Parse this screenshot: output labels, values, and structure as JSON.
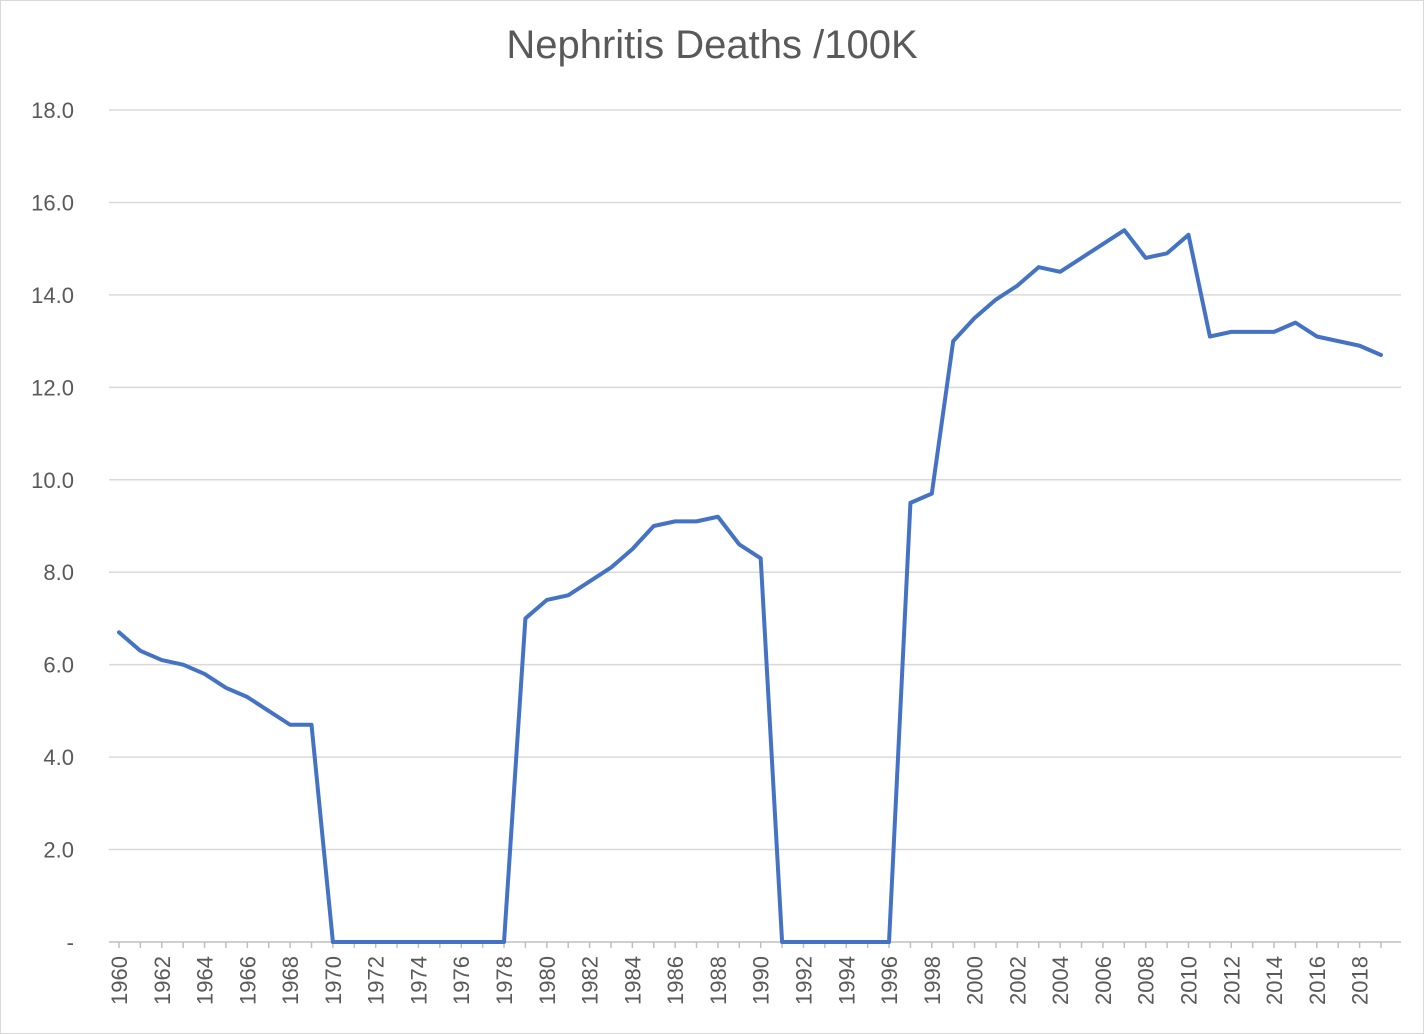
{
  "chart_data": {
    "type": "line",
    "title": "Nephritis Deaths /100K",
    "xlabel": "",
    "ylabel": "",
    "ylim": [
      0,
      18
    ],
    "yticks": [
      "-",
      "2.0",
      "4.0",
      "6.0",
      "8.0",
      "10.0",
      "12.0",
      "14.0",
      "16.0",
      "18.0"
    ],
    "xticks": [
      "1960",
      "1962",
      "1964",
      "1966",
      "1968",
      "1970",
      "1972",
      "1974",
      "1976",
      "1978",
      "1980",
      "1982",
      "1984",
      "1986",
      "1988",
      "1990",
      "1992",
      "1994",
      "1996",
      "1998",
      "2000",
      "2002",
      "2004",
      "2006",
      "2008",
      "2010",
      "2012",
      "2014",
      "2016",
      "2018"
    ],
    "grid": true,
    "legend": "none",
    "series_color": "#4472c4",
    "x": [
      1960,
      1961,
      1962,
      1963,
      1964,
      1965,
      1966,
      1967,
      1968,
      1969,
      1970,
      1971,
      1972,
      1973,
      1974,
      1975,
      1976,
      1977,
      1978,
      1979,
      1980,
      1981,
      1982,
      1983,
      1984,
      1985,
      1986,
      1987,
      1988,
      1989,
      1990,
      1991,
      1992,
      1993,
      1994,
      1995,
      1996,
      1997,
      1998,
      1999,
      2000,
      2001,
      2002,
      2003,
      2004,
      2005,
      2006,
      2007,
      2008,
      2009,
      2010,
      2011,
      2012,
      2013,
      2014,
      2015,
      2016,
      2017,
      2018,
      2019
    ],
    "series": [
      {
        "values": [
          6.7,
          6.3,
          6.1,
          6.0,
          5.8,
          5.5,
          5.3,
          5.0,
          4.7,
          4.7,
          0,
          0,
          0,
          0,
          0,
          0,
          0,
          0,
          0,
          7.0,
          7.4,
          7.5,
          7.8,
          8.1,
          8.5,
          9.0,
          9.1,
          9.1,
          9.2,
          8.6,
          8.3,
          0,
          0,
          0,
          0,
          0,
          0,
          9.5,
          9.7,
          13.0,
          13.5,
          13.9,
          14.2,
          14.6,
          14.5,
          14.8,
          15.1,
          15.4,
          14.8,
          14.9,
          15.3,
          13.1,
          13.2,
          13.2,
          13.2,
          13.4,
          13.1,
          13.0,
          12.9,
          12.7
        ]
      }
    ]
  }
}
